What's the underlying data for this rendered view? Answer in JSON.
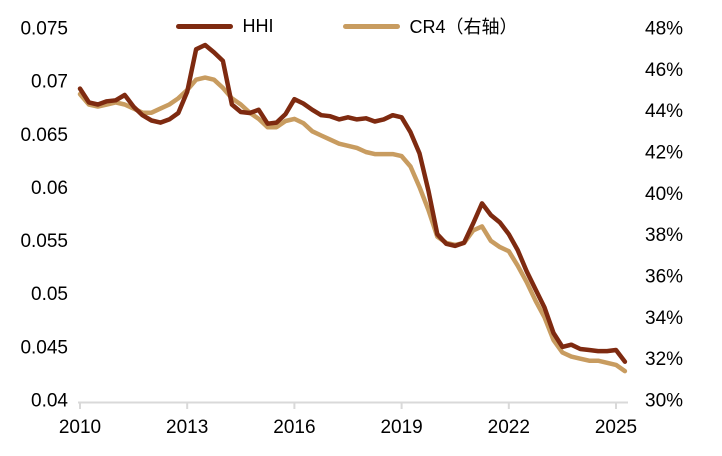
{
  "chart_data": {
    "type": "line",
    "title": "",
    "xlabel": "",
    "ylabel_left": "",
    "ylabel_right": "",
    "grid": false,
    "legend_position": "top-center",
    "background_color": "#FFFFFF",
    "text_color": "#000000",
    "axis_line_color": "#D9D9D9",
    "x_range": [
      2010,
      2025.5
    ],
    "x_ticks": [
      2010,
      2013,
      2016,
      2019,
      2022,
      2025
    ],
    "left_axis": {
      "min": 0.04,
      "max": 0.075,
      "tick_labels": [
        "0.075",
        "0.07",
        "0.065",
        "0.06",
        "0.055",
        "0.05",
        "0.045",
        "0.04"
      ]
    },
    "right_axis": {
      "min": 30,
      "max": 48,
      "tick_labels": [
        "48%",
        "46%",
        "44%",
        "42%",
        "40%",
        "38%",
        "36%",
        "34%",
        "32%",
        "30%"
      ]
    },
    "x": [
      2010.0,
      2010.25,
      2010.5,
      2010.75,
      2011.0,
      2011.25,
      2011.5,
      2011.75,
      2012.0,
      2012.25,
      2012.5,
      2012.75,
      2013.0,
      2013.25,
      2013.5,
      2013.75,
      2014.0,
      2014.25,
      2014.5,
      2014.75,
      2015.0,
      2015.25,
      2015.5,
      2015.75,
      2016.0,
      2016.25,
      2016.5,
      2016.75,
      2017.0,
      2017.25,
      2017.5,
      2017.75,
      2018.0,
      2018.25,
      2018.5,
      2018.75,
      2019.0,
      2019.25,
      2019.5,
      2019.75,
      2020.0,
      2020.25,
      2020.5,
      2020.75,
      2021.0,
      2021.25,
      2021.5,
      2021.75,
      2022.0,
      2022.25,
      2022.5,
      2022.75,
      2023.0,
      2023.25,
      2023.5,
      2023.75,
      2024.0,
      2024.25,
      2024.5,
      2024.75,
      2025.0,
      2025.25
    ],
    "series": [
      {
        "name": "HHI",
        "axis": "left",
        "color": "#7E2A10",
        "values": [
          0.0693,
          0.068,
          0.0678,
          0.0681,
          0.0682,
          0.0687,
          0.0676,
          0.0668,
          0.0663,
          0.0661,
          0.0664,
          0.067,
          0.069,
          0.073,
          0.0734,
          0.0727,
          0.0719,
          0.0678,
          0.0671,
          0.067,
          0.0673,
          0.066,
          0.0661,
          0.0669,
          0.0683,
          0.0679,
          0.0673,
          0.0668,
          0.0667,
          0.0664,
          0.0666,
          0.0664,
          0.0665,
          0.0662,
          0.0664,
          0.0668,
          0.0666,
          0.0652,
          0.0632,
          0.0597,
          0.0556,
          0.0547,
          0.0545,
          0.0548,
          0.0566,
          0.0585,
          0.0574,
          0.0567,
          0.0556,
          0.0541,
          0.0521,
          0.0504,
          0.0487,
          0.0463,
          0.045,
          0.0452,
          0.0448,
          0.0447,
          0.0446,
          0.0446,
          0.0447,
          0.0436
        ]
      },
      {
        "name": "CR4（右轴）",
        "axis": "right",
        "color": "#C89C60",
        "values": [
          44.8,
          44.3,
          44.2,
          44.3,
          44.4,
          44.3,
          44.1,
          43.9,
          43.9,
          44.1,
          44.3,
          44.6,
          45.0,
          45.5,
          45.6,
          45.5,
          45.1,
          44.6,
          44.3,
          43.9,
          43.6,
          43.2,
          43.2,
          43.5,
          43.6,
          43.4,
          43.0,
          42.8,
          42.6,
          42.4,
          42.3,
          42.2,
          42.0,
          41.9,
          41.9,
          41.9,
          41.8,
          41.3,
          40.3,
          39.2,
          37.9,
          37.6,
          37.5,
          37.6,
          38.2,
          38.4,
          37.7,
          37.4,
          37.2,
          36.5,
          35.7,
          34.8,
          34.0,
          32.9,
          32.3,
          32.1,
          32.0,
          31.9,
          31.9,
          31.8,
          31.7,
          31.4
        ]
      }
    ]
  }
}
